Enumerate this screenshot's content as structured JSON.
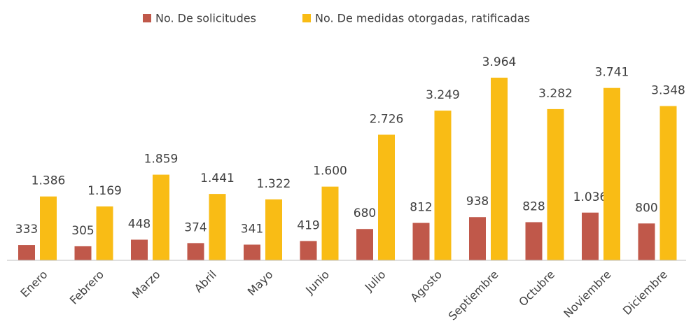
{
  "chart_data": {
    "type": "bar",
    "categories": [
      "Enero",
      "Febrero",
      "Marzo",
      "Abril",
      "Mayo",
      "Junio",
      "Julio",
      "Agosto",
      "Septiembre",
      "Octubre",
      "Noviembre",
      "Diciembre"
    ],
    "series": [
      {
        "name": "No. De solicitudes",
        "color": "#c0584a",
        "values": [
          333,
          305,
          448,
          374,
          341,
          419,
          680,
          812,
          938,
          828,
          1036,
          800
        ],
        "value_labels": [
          "333",
          "305",
          "448",
          "374",
          "341",
          "419",
          "680",
          "812",
          "938",
          "828",
          "1.036",
          "800"
        ]
      },
      {
        "name": "No. De medidas otorgadas, ratificadas",
        "color": "#f9bc15",
        "values": [
          1386,
          1169,
          1859,
          1441,
          1322,
          1600,
          2726,
          3249,
          3964,
          3282,
          3741,
          3348
        ],
        "value_labels": [
          "1.386",
          "1.169",
          "1.859",
          "1.441",
          "1.322",
          "1.600",
          "2.726",
          "3.249",
          "3.964",
          "3.282",
          "3.741",
          "3.348"
        ]
      }
    ],
    "legend": "top"
  }
}
